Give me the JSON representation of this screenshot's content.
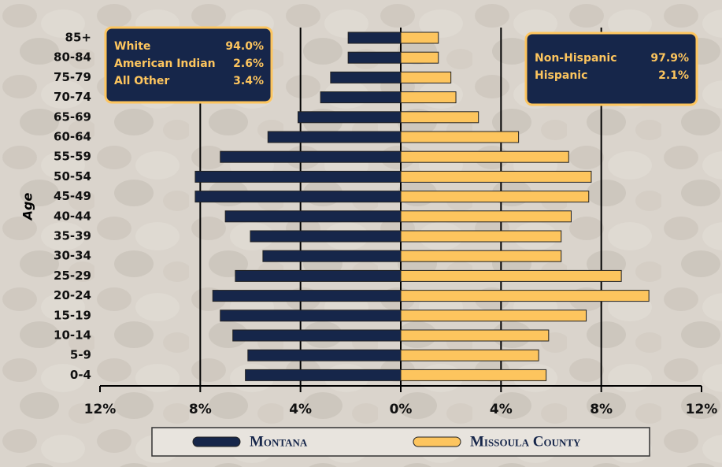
{
  "chart_data": {
    "type": "pyramid",
    "y_label": "Age",
    "categories": [
      "85+",
      "80-84",
      "75-79",
      "70-74",
      "65-69",
      "60-64",
      "55-59",
      "50-54",
      "45-49",
      "40-44",
      "35-39",
      "30-34",
      "25-29",
      "20-24",
      "15-19",
      "10-14",
      "5-9",
      "0-4"
    ],
    "series": [
      {
        "name": "Montana",
        "color": "#16264a",
        "side": "left",
        "values": [
          2.1,
          2.1,
          2.8,
          3.2,
          4.1,
          5.3,
          7.2,
          8.2,
          8.2,
          7.0,
          6.0,
          5.5,
          6.6,
          7.5,
          7.2,
          6.7,
          6.1,
          6.2
        ]
      },
      {
        "name": "Missoula County",
        "color": "#fdc55e",
        "side": "right",
        "values": [
          1.5,
          1.5,
          2.0,
          2.2,
          3.1,
          4.7,
          6.7,
          7.6,
          7.5,
          6.8,
          6.4,
          6.4,
          8.8,
          9.9,
          7.4,
          5.9,
          5.5,
          5.8
        ]
      }
    ],
    "xlim": [
      -12,
      12
    ],
    "xticks": [
      {
        "value": -12,
        "label": "12%"
      },
      {
        "value": -8,
        "label": "8%"
      },
      {
        "value": -4,
        "label": "4%"
      },
      {
        "value": 0,
        "label": "0%"
      },
      {
        "value": 4,
        "label": "4%"
      },
      {
        "value": 8,
        "label": "8%"
      },
      {
        "value": 12,
        "label": "12%"
      }
    ],
    "grid": true,
    "race_box": [
      {
        "label": "White",
        "value": "94.0%"
      },
      {
        "label": "American Indian",
        "value": "2.6%"
      },
      {
        "label": "All Other",
        "value": "3.4%"
      }
    ],
    "ethnicity_box": [
      {
        "label": "Non-Hispanic",
        "value": "97.9%"
      },
      {
        "label": "Hispanic",
        "value": "2.1%"
      }
    ]
  }
}
